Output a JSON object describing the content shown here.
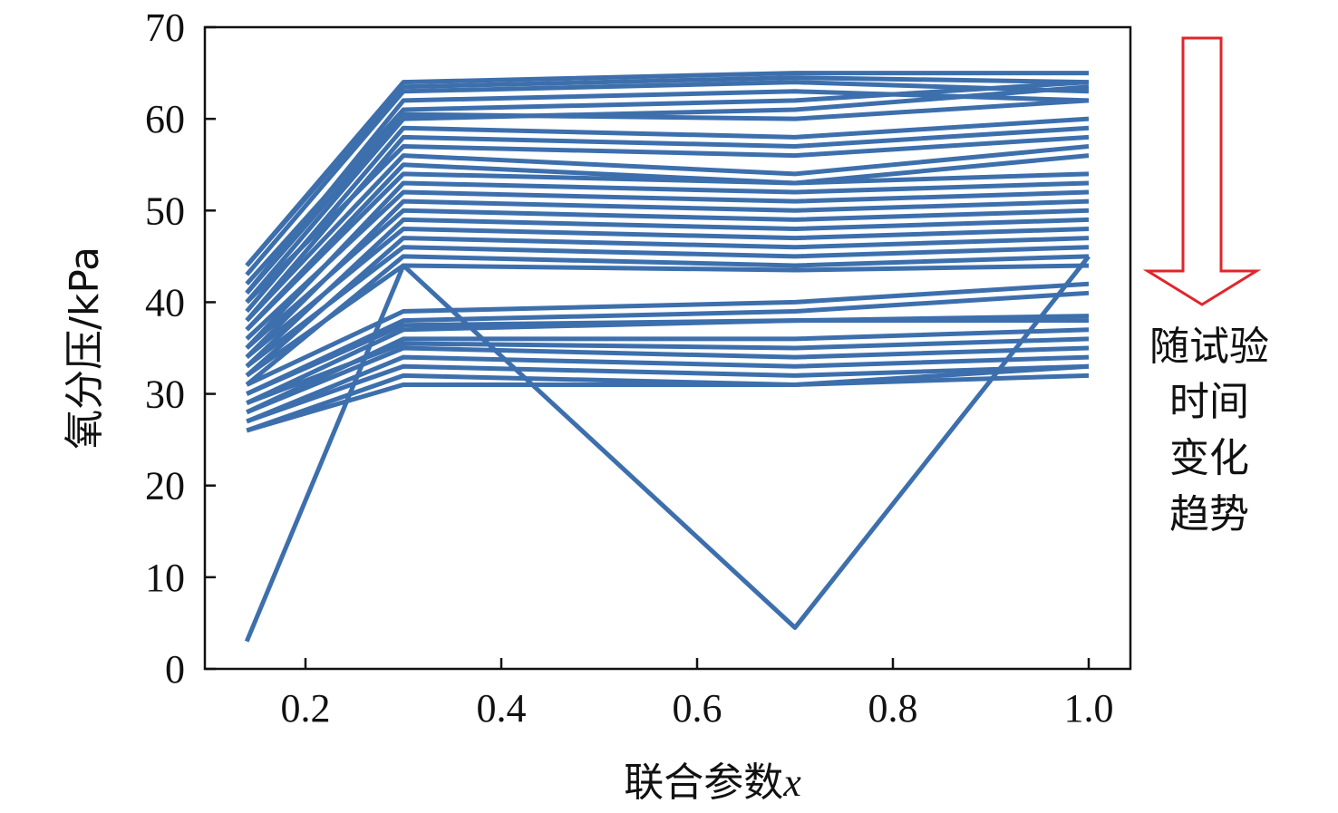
{
  "chart_data": {
    "type": "line",
    "title": "",
    "xlabel": "联合参数",
    "xlabel_var": "x",
    "ylabel": "氧分压/kPa",
    "xlim": [
      0.1,
      1.05
    ],
    "ylim": [
      0,
      70
    ],
    "xticks": [
      "0.2",
      "0.4",
      "0.6",
      "0.8",
      "1.0"
    ],
    "xtick_values": [
      0.2,
      0.4,
      0.6,
      0.8,
      1.0
    ],
    "yticks": [
      "0",
      "10",
      "20",
      "30",
      "40",
      "50",
      "60",
      "70"
    ],
    "ytick_values": [
      0,
      10,
      20,
      30,
      40,
      50,
      60,
      70
    ],
    "grid": false,
    "line_color": "#3d6fad",
    "x": [
      0.14,
      0.3,
      0.7,
      1.0
    ],
    "series": [
      {
        "values": [
          44,
          64,
          65,
          65
        ]
      },
      {
        "values": [
          44,
          63.5,
          64.5,
          64
        ]
      },
      {
        "values": [
          43,
          63,
          64,
          63
        ]
      },
      {
        "values": [
          41,
          62,
          63,
          62
        ]
      },
      {
        "values": [
          42,
          61,
          62,
          64
        ]
      },
      {
        "values": [
          40,
          60,
          61,
          63.5
        ]
      },
      {
        "values": [
          41,
          60.5,
          60,
          62
        ]
      },
      {
        "values": [
          39,
          59,
          58,
          60
        ]
      },
      {
        "values": [
          38,
          58,
          57,
          59
        ]
      },
      {
        "values": [
          40,
          57,
          56,
          58
        ]
      },
      {
        "values": [
          38,
          56,
          54,
          57
        ]
      },
      {
        "values": [
          37,
          55,
          53,
          56
        ]
      },
      {
        "values": [
          37,
          54,
          53,
          54
        ]
      },
      {
        "values": [
          35,
          53,
          52,
          53
        ]
      },
      {
        "values": [
          36,
          52,
          51,
          52
        ]
      },
      {
        "values": [
          34,
          51,
          50,
          51
        ]
      },
      {
        "values": [
          35,
          50,
          49,
          50
        ]
      },
      {
        "values": [
          33,
          49,
          48,
          49
        ]
      },
      {
        "values": [
          34,
          48,
          47,
          48
        ]
      },
      {
        "values": [
          32,
          47,
          46,
          47
        ]
      },
      {
        "values": [
          33,
          46,
          45,
          46
        ]
      },
      {
        "values": [
          31,
          45,
          44,
          45
        ]
      },
      {
        "values": [
          32,
          44,
          43.5,
          44
        ]
      },
      {
        "values": [
          31,
          39,
          40,
          42
        ]
      },
      {
        "values": [
          30,
          38,
          39,
          41
        ]
      },
      {
        "values": [
          30,
          37.5,
          38,
          38
        ]
      },
      {
        "values": [
          29,
          37,
          38,
          38.5
        ]
      },
      {
        "values": [
          28,
          36,
          36,
          37
        ]
      },
      {
        "values": [
          29,
          35.5,
          35,
          36
        ]
      },
      {
        "values": [
          28,
          35,
          34,
          35
        ]
      },
      {
        "values": [
          27,
          34,
          33,
          34
        ]
      },
      {
        "values": [
          27,
          33,
          32,
          33
        ]
      },
      {
        "values": [
          26,
          32,
          31,
          33
        ]
      },
      {
        "values": [
          26,
          31,
          31,
          32
        ]
      },
      {
        "values": [
          3,
          44,
          4.5,
          45
        ]
      }
    ],
    "annotation": {
      "lines": [
        "随试验",
        "时间",
        "变化",
        "趋势"
      ],
      "arrow_direction": "down",
      "arrow_color": "#e0262b"
    }
  }
}
